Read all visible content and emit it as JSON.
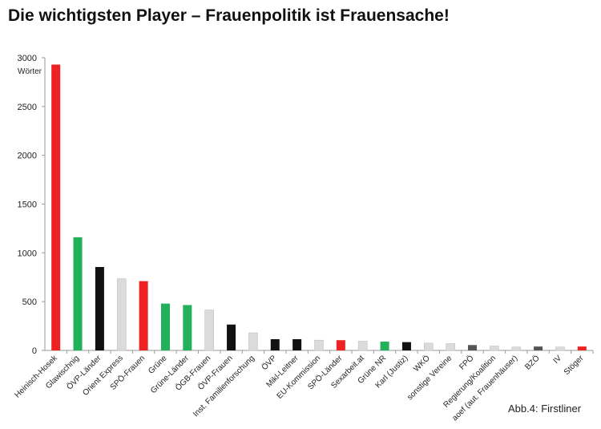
{
  "header": {
    "title": "Die wichtigsten Player – Frauenpolitik ist Frauensache!"
  },
  "caption": "Abb.4: Firstliner",
  "colors": {
    "red": "#ee2222",
    "green": "#22b15a",
    "black": "#111111",
    "lightgray": "#dddada",
    "darkgray": "#555555",
    "axis": "#9a9a9a"
  },
  "chart_data": {
    "type": "bar",
    "title": "Die wichtigsten Player – Frauenpolitik ist Frauensache!",
    "ylabel": "Wörter",
    "xlabel": "",
    "ylim": [
      0,
      3000
    ],
    "yticks": [
      0,
      500,
      1000,
      1500,
      2000,
      2500,
      3000
    ],
    "grid": false,
    "categories": [
      "Heinisch-Hosek",
      "Glawischnig",
      "ÖVP-Länder",
      "Orient Express",
      "SPÖ-Frauen",
      "Grüne",
      "Grüne-Länder",
      "ÖGB-Frauen",
      "ÖVP-Frauen",
      "Inst. Familienforschung",
      "ÖVP",
      "Mikl-Leitner",
      "EU-Kommission",
      "SPÖ-Länder",
      "Sexarbeit.at",
      "Grüne NR",
      "Karl (Justiz)",
      "WKÖ",
      "sonstige Vereine",
      "FPÖ",
      "Regierung/Koalition",
      "aoef (aut. Frauenhäuser)",
      "BZÖ",
      "IV",
      "Stöger"
    ],
    "values": [
      2930,
      1160,
      855,
      735,
      710,
      480,
      465,
      415,
      265,
      180,
      115,
      115,
      105,
      105,
      95,
      90,
      85,
      75,
      70,
      55,
      45,
      35,
      40,
      35,
      40
    ],
    "bar_colors": [
      "red",
      "green",
      "black",
      "lightgray",
      "red",
      "green",
      "green",
      "lightgray",
      "black",
      "lightgray",
      "black",
      "black",
      "lightgray",
      "red",
      "lightgray",
      "green",
      "black",
      "lightgray",
      "lightgray",
      "darkgray",
      "lightgray",
      "lightgray",
      "darkgray",
      "lightgray",
      "red"
    ]
  }
}
